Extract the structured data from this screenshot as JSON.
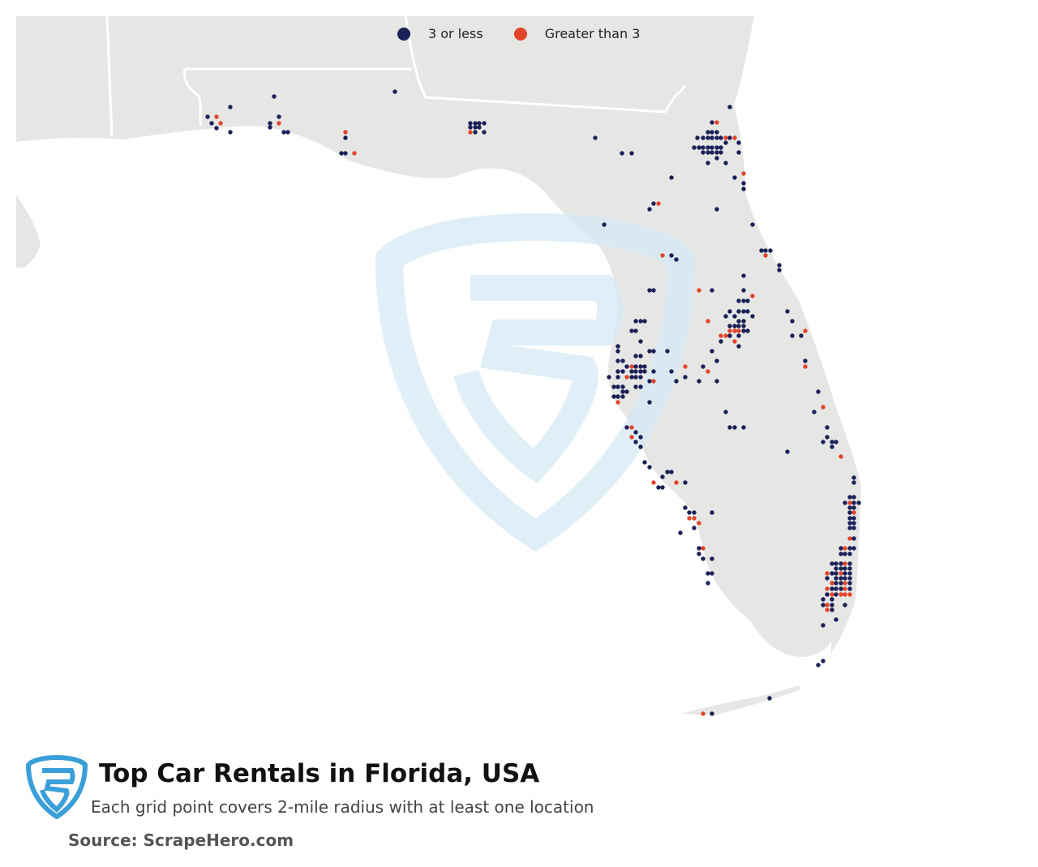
{
  "legend": {
    "items": [
      {
        "label": "3 or less",
        "color": "#1a2157"
      },
      {
        "label": "Greater than 3",
        "color": "#e4452a"
      }
    ]
  },
  "colors": {
    "land": "#e6e6e5",
    "water": "#ffffff",
    "border": "#ffffff",
    "watermark": "#d6eaf5",
    "logo": "#3a9fd8"
  },
  "icons": {
    "footer_logo": "scrapehero-shield-logo-icon",
    "watermark": "scrapehero-watermark-icon"
  },
  "footer": {
    "title": "Top Car Rentals in Florida, USA",
    "subtitle": "Each grid point covers 2-mile radius with at least one location",
    "source": "Source: ScrapeHero.com"
  }
}
